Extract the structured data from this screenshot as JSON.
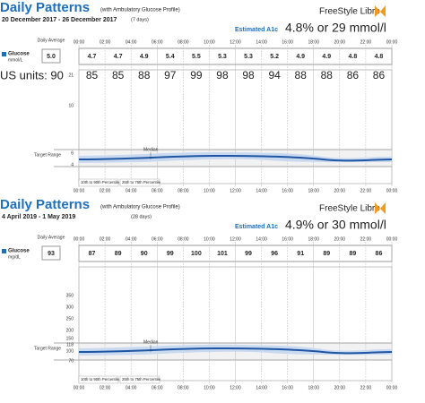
{
  "reports": [
    {
      "title": "Daily Patterns",
      "subtitle": "(with Ambulatory Glucose Profile)",
      "dates": "20 December 2017 - 26 December 2017",
      "days": "(7 days)",
      "brand": "FreeStyle Libre",
      "a1c_label": "Estimated A1c",
      "a1c_value": "4.8% or 29 mmol/l",
      "average_label": "Daily Average",
      "glucose_label": "Glucose",
      "unit": "mmol/L",
      "average": "5.0",
      "times": [
        "00:00",
        "02:00",
        "04:00",
        "06:00",
        "08:00",
        "10:00",
        "12:00",
        "14:00",
        "16:00",
        "18:00",
        "20:00",
        "22:00",
        "00:00"
      ],
      "hourly": [
        "4.7",
        "4.7",
        "4.9",
        "5.4",
        "5.5",
        "5.3",
        "5.3",
        "5.2",
        "4.9",
        "4.9",
        "4.8",
        "4.8"
      ],
      "y_ticks": [
        "21",
        "10",
        "6",
        "4"
      ],
      "target_label": "Target Range",
      "median_label": "Median",
      "legend": [
        "10th to 90th Percentile",
        "25th to 75th Percentile"
      ]
    },
    {
      "title": "Daily Patterns",
      "subtitle": "(with Ambulatory Glucose Profile)",
      "dates": "4 April 2019 - 1 May 2019",
      "days": "(28 days)",
      "brand": "FreeStyle Libre",
      "a1c_label": "Estimated A1c",
      "a1c_value": "4.9% or 30 mmol/l",
      "average_label": "Daily Average",
      "glucose_label": "Glucose",
      "unit": "mg/dL",
      "average": "93",
      "times": [
        "00:00",
        "02:00",
        "04:00",
        "06:00",
        "08:00",
        "10:00",
        "12:00",
        "14:00",
        "16:00",
        "18:00",
        "20:00",
        "22:00",
        "00:00"
      ],
      "hourly": [
        "87",
        "89",
        "90",
        "99",
        "100",
        "101",
        "99",
        "96",
        "91",
        "89",
        "89",
        "86"
      ],
      "y_ticks": [
        "350",
        "300",
        "250",
        "200",
        "150",
        "118",
        "100",
        "70"
      ],
      "target_label": "Target Range",
      "median_label": "Median",
      "legend": [
        "10th to 90th Percentile",
        "25th to 75th Percentile"
      ]
    }
  ],
  "annotation": {
    "label": "US units: 90",
    "values": [
      "85",
      "85",
      "88",
      "97",
      "99",
      "98",
      "98",
      "94",
      "88",
      "88",
      "86",
      "86"
    ]
  }
}
